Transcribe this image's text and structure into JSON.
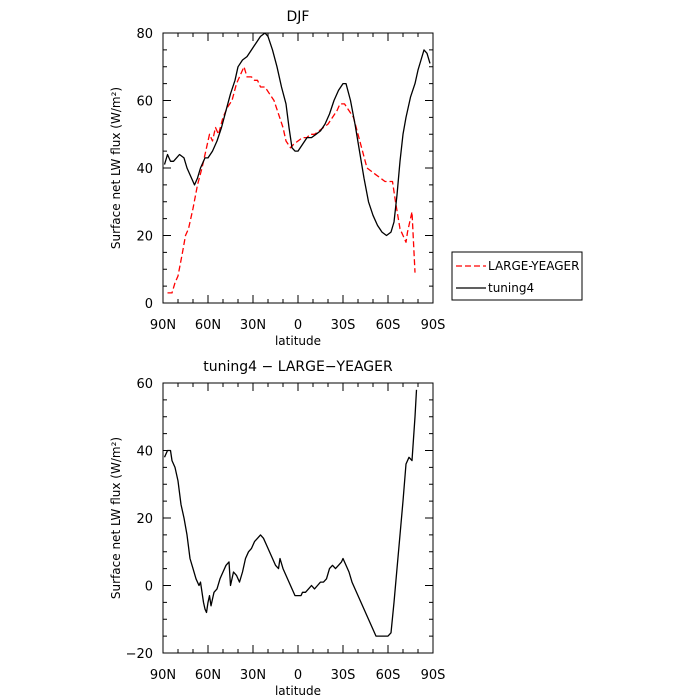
{
  "chart_data": [
    {
      "type": "line",
      "title": "DJF",
      "xlabel": "latitude",
      "ylabel": "Surface net LW flux (W/m²)",
      "xlim": [
        90,
        -90
      ],
      "ylim": [
        0,
        80
      ],
      "x_ticks": [
        90,
        60,
        30,
        0,
        -30,
        -60,
        -90
      ],
      "x_tick_labels": [
        "90N",
        "60N",
        "30N",
        "0",
        "30S",
        "60S",
        "90S"
      ],
      "y_ticks": [
        0,
        20,
        40,
        60,
        80
      ],
      "y_tick_labels": [
        "0",
        "20",
        "40",
        "60",
        "80"
      ],
      "grid": false,
      "legend": "right, outside plot",
      "series": [
        {
          "name": "LARGE-YEAGER",
          "color": "#ff0000",
          "dash": "dashed",
          "points": [
            [
              87,
              3
            ],
            [
              84,
              3
            ],
            [
              82,
              6
            ],
            [
              80,
              8
            ],
            [
              77,
              15
            ],
            [
              75,
              20
            ],
            [
              73,
              22
            ],
            [
              70,
              28
            ],
            [
              67,
              35
            ],
            [
              64,
              40
            ],
            [
              61,
              46
            ],
            [
              59,
              50
            ],
            [
              57,
              48
            ],
            [
              55,
              52
            ],
            [
              53,
              50
            ],
            [
              50,
              55
            ],
            [
              47,
              58
            ],
            [
              44,
              60
            ],
            [
              41,
              65
            ],
            [
              38,
              68
            ],
            [
              36,
              70
            ],
            [
              34,
              67
            ],
            [
              31,
              67
            ],
            [
              29,
              66
            ],
            [
              27,
              66
            ],
            [
              25,
              64
            ],
            [
              22,
              64
            ],
            [
              19,
              62
            ],
            [
              16,
              60
            ],
            [
              13,
              56
            ],
            [
              10,
              52
            ],
            [
              8,
              48
            ],
            [
              5,
              46
            ],
            [
              3,
              47
            ],
            [
              0,
              48
            ],
            [
              -3,
              49
            ],
            [
              -6,
              49
            ],
            [
              -8,
              50
            ],
            [
              -11,
              50
            ],
            [
              -14,
              51
            ],
            [
              -17,
              52
            ],
            [
              -20,
              53
            ],
            [
              -23,
              55
            ],
            [
              -26,
              57
            ],
            [
              -28,
              59
            ],
            [
              -31,
              59
            ],
            [
              -34,
              57
            ],
            [
              -37,
              55
            ],
            [
              -40,
              50
            ],
            [
              -43,
              45
            ],
            [
              -46,
              40
            ],
            [
              -49,
              39
            ],
            [
              -52,
              38
            ],
            [
              -55,
              37
            ],
            [
              -58,
              36
            ],
            [
              -61,
              36
            ],
            [
              -63,
              36
            ],
            [
              -65,
              30
            ],
            [
              -68,
              22
            ],
            [
              -70,
              20
            ],
            [
              -72,
              18
            ],
            [
              -73,
              21
            ],
            [
              -75,
              25
            ],
            [
              -76,
              27
            ],
            [
              -78,
              9
            ]
          ]
        },
        {
          "name": "tuning4",
          "color": "#000000",
          "dash": "solid",
          "points": [
            [
              89,
              41
            ],
            [
              87,
              44
            ],
            [
              85,
              42
            ],
            [
              83,
              42
            ],
            [
              81,
              43
            ],
            [
              79,
              44
            ],
            [
              76,
              43
            ],
            [
              74,
              40
            ],
            [
              71,
              37
            ],
            [
              69,
              35
            ],
            [
              67,
              37
            ],
            [
              65,
              40
            ],
            [
              62,
              43
            ],
            [
              60,
              43
            ],
            [
              57,
              45
            ],
            [
              54,
              48
            ],
            [
              51,
              52
            ],
            [
              48,
              57
            ],
            [
              45,
              62
            ],
            [
              42,
              66
            ],
            [
              40,
              70
            ],
            [
              37,
              72
            ],
            [
              34,
              73
            ],
            [
              31,
              75
            ],
            [
              28,
              77
            ],
            [
              25,
              79
            ],
            [
              22,
              80
            ],
            [
              20,
              79
            ],
            [
              17,
              75
            ],
            [
              14,
              70
            ],
            [
              11,
              64
            ],
            [
              8,
              59
            ],
            [
              6,
              52
            ],
            [
              4,
              46
            ],
            [
              2,
              45
            ],
            [
              0,
              45
            ],
            [
              -3,
              47
            ],
            [
              -6,
              49
            ],
            [
              -9,
              49
            ],
            [
              -12,
              50
            ],
            [
              -15,
              51
            ],
            [
              -18,
              53
            ],
            [
              -21,
              56
            ],
            [
              -24,
              60
            ],
            [
              -27,
              63
            ],
            [
              -30,
              65
            ],
            [
              -32,
              65
            ],
            [
              -35,
              60
            ],
            [
              -38,
              53
            ],
            [
              -41,
              45
            ],
            [
              -44,
              37
            ],
            [
              -47,
              30
            ],
            [
              -50,
              26
            ],
            [
              -53,
              23
            ],
            [
              -56,
              21
            ],
            [
              -59,
              20
            ],
            [
              -62,
              21
            ],
            [
              -64,
              24
            ],
            [
              -66,
              32
            ],
            [
              -68,
              42
            ],
            [
              -70,
              50
            ],
            [
              -72,
              55
            ],
            [
              -75,
              61
            ],
            [
              -78,
              65
            ],
            [
              -80,
              69
            ],
            [
              -82,
              72
            ],
            [
              -84,
              75
            ],
            [
              -86,
              74
            ],
            [
              -88,
              71
            ]
          ]
        }
      ]
    },
    {
      "type": "line",
      "title": "tuning4 − LARGE−YEAGER",
      "xlabel": "latitude",
      "ylabel": "Surface net LW flux (W/m²)",
      "xlim": [
        90,
        -90
      ],
      "ylim": [
        -20,
        60
      ],
      "x_ticks": [
        90,
        60,
        30,
        0,
        -30,
        -60,
        -90
      ],
      "x_tick_labels": [
        "90N",
        "60N",
        "30N",
        "0",
        "30S",
        "60S",
        "90S"
      ],
      "y_ticks": [
        -20,
        0,
        20,
        40,
        60
      ],
      "y_tick_labels": [
        "−20",
        "0",
        "20",
        "40",
        "60"
      ],
      "grid": false,
      "series": [
        {
          "color": "#000000",
          "dash": "solid",
          "points": [
            [
              89,
              38
            ],
            [
              87,
              40
            ],
            [
              85,
              40
            ],
            [
              84,
              37
            ],
            [
              82,
              35
            ],
            [
              80,
              31
            ],
            [
              78,
              24
            ],
            [
              76,
              20
            ],
            [
              74,
              15
            ],
            [
              72,
              8
            ],
            [
              70,
              5
            ],
            [
              68,
              2
            ],
            [
              66,
              0
            ],
            [
              65,
              1
            ],
            [
              63,
              -5
            ],
            [
              62,
              -7
            ],
            [
              61,
              -8
            ],
            [
              60,
              -5
            ],
            [
              59,
              -3
            ],
            [
              58,
              -6
            ],
            [
              57,
              -4
            ],
            [
              56,
              -2
            ],
            [
              54,
              -1
            ],
            [
              52,
              2
            ],
            [
              50,
              4
            ],
            [
              48,
              6
            ],
            [
              46,
              7
            ],
            [
              45,
              0
            ],
            [
              43,
              4
            ],
            [
              41,
              3
            ],
            [
              39,
              1
            ],
            [
              37,
              4
            ],
            [
              35,
              8
            ],
            [
              33,
              10
            ],
            [
              31,
              11
            ],
            [
              29,
              13
            ],
            [
              27,
              14
            ],
            [
              25,
              15
            ],
            [
              23,
              14
            ],
            [
              21,
              12
            ],
            [
              19,
              10
            ],
            [
              17,
              8
            ],
            [
              15,
              6
            ],
            [
              13,
              5
            ],
            [
              12,
              8
            ],
            [
              10,
              5
            ],
            [
              8,
              3
            ],
            [
              6,
              1
            ],
            [
              4,
              -1
            ],
            [
              2,
              -3
            ],
            [
              0,
              -3
            ],
            [
              -2,
              -3
            ],
            [
              -3,
              -2
            ],
            [
              -5,
              -2
            ],
            [
              -7,
              -1
            ],
            [
              -9,
              0
            ],
            [
              -11,
              -1
            ],
            [
              -13,
              0
            ],
            [
              -15,
              1
            ],
            [
              -17,
              1
            ],
            [
              -19,
              2
            ],
            [
              -21,
              5
            ],
            [
              -23,
              6
            ],
            [
              -25,
              5
            ],
            [
              -27,
              6
            ],
            [
              -29,
              7
            ],
            [
              -30,
              8
            ],
            [
              -32,
              6
            ],
            [
              -34,
              4
            ],
            [
              -36,
              1
            ],
            [
              -38,
              -1
            ],
            [
              -40,
              -3
            ],
            [
              -42,
              -5
            ],
            [
              -44,
              -7
            ],
            [
              -46,
              -9
            ],
            [
              -48,
              -11
            ],
            [
              -50,
              -13
            ],
            [
              -52,
              -15
            ],
            [
              -54,
              -15
            ],
            [
              -56,
              -15
            ],
            [
              -58,
              -15
            ],
            [
              -60,
              -15
            ],
            [
              -62,
              -14
            ],
            [
              -64,
              -5
            ],
            [
              -66,
              5
            ],
            [
              -68,
              15
            ],
            [
              -70,
              25
            ],
            [
              -72,
              36
            ],
            [
              -74,
              38
            ],
            [
              -76,
              37
            ],
            [
              -78,
              50
            ],
            [
              -79,
              58
            ]
          ]
        }
      ]
    }
  ]
}
